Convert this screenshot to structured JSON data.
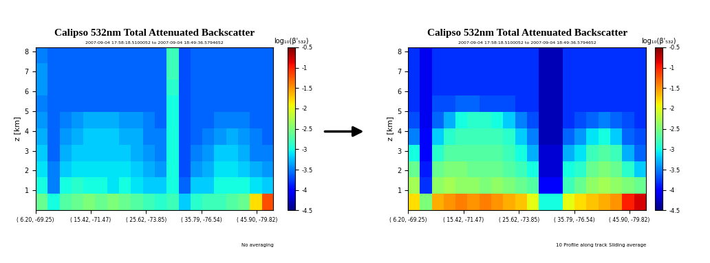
{
  "chart_data": [
    {
      "type": "heatmap",
      "title": "Calipso 532nm Total Attenuated Backscatter",
      "subtitle": "2007-09-04 17:58:18.5100052 to 2007-09-04 18:49:36.5794652",
      "y_label": "z [km]",
      "footer": "No averaging",
      "xlim": [
        0,
        4.3
      ],
      "xticks": [
        {
          "value": 0,
          "label": "( 6.20, -69.25)"
        },
        {
          "value": 1,
          "label": "( 15.42, -71.47)"
        },
        {
          "value": 2,
          "label": "( 25.62, -73.85)"
        },
        {
          "value": 3,
          "label": "( 35.79, -76.54)"
        },
        {
          "value": 4,
          "label": "( 45.90, -79.82)"
        }
      ],
      "ylim": [
        0,
        8.2
      ],
      "yticks": [
        1,
        2,
        3,
        4,
        5,
        6,
        7,
        8
      ],
      "colorbar_label": "log₁₀(β'₅₃₂)",
      "colorbar_range": [
        -4.5,
        -0.5
      ],
      "colorbar_ticks": [
        -0.5,
        -1,
        -1.5,
        -2,
        -2.5,
        -3,
        -3.5,
        -4,
        -4.5
      ],
      "cells": [
        [
          -2.6,
          -3.0,
          -2.7,
          -2.6,
          -2.5,
          -2.6,
          -2.5,
          -2.6,
          -2.7,
          -2.8,
          -2.9,
          -2.8,
          -3.2,
          -2.9,
          -2.8,
          -2.8,
          -2.7,
          -2.6,
          -1.8,
          -1.2
        ],
        [
          -3.0,
          -3.5,
          -3.0,
          -2.9,
          -3.0,
          -3.0,
          -3.1,
          -3.0,
          -3.1,
          -3.2,
          -3.2,
          -3.0,
          -3.6,
          -3.2,
          -3.2,
          -3.0,
          -3.0,
          -3.0,
          -3.1,
          -3.2
        ],
        [
          -3.1,
          -3.5,
          -3.2,
          -3.1,
          -3.1,
          -3.1,
          -3.1,
          -3.1,
          -3.2,
          -3.3,
          -3.4,
          -3.0,
          -3.7,
          -3.4,
          -3.3,
          -3.1,
          -3.1,
          -3.2,
          -3.3,
          -3.4
        ],
        [
          -3.2,
          -3.6,
          -3.3,
          -3.2,
          -3.2,
          -3.2,
          -3.2,
          -3.2,
          -3.3,
          -3.4,
          -3.5,
          -3.0,
          -3.7,
          -3.5,
          -3.4,
          -3.2,
          -3.2,
          -3.3,
          -3.5,
          -3.5
        ],
        [
          -3.3,
          -3.6,
          -3.4,
          -3.3,
          -3.2,
          -3.2,
          -3.2,
          -3.3,
          -3.3,
          -3.5,
          -3.5,
          -3.0,
          -3.7,
          -3.6,
          -3.5,
          -3.4,
          -3.3,
          -3.4,
          -3.5,
          -3.6
        ],
        [
          -3.4,
          -3.6,
          -3.5,
          -3.4,
          -3.3,
          -3.3,
          -3.3,
          -3.4,
          -3.4,
          -3.5,
          -3.6,
          -3.0,
          -3.7,
          -3.6,
          -3.6,
          -3.5,
          -3.5,
          -3.5,
          -3.6,
          -3.6
        ],
        [
          -3.5,
          -3.6,
          -3.6,
          -3.6,
          -3.6,
          -3.6,
          -3.6,
          -3.6,
          -3.6,
          -3.6,
          -3.6,
          -3.0,
          -3.7,
          -3.6,
          -3.6,
          -3.6,
          -3.6,
          -3.6,
          -3.6,
          -3.6
        ],
        [
          -3.4,
          -3.6,
          -3.6,
          -3.6,
          -3.6,
          -3.6,
          -3.6,
          -3.6,
          -3.6,
          -3.6,
          -3.6,
          -2.9,
          -3.7,
          -3.6,
          -3.6,
          -3.6,
          -3.6,
          -3.6,
          -3.6,
          -3.6
        ],
        [
          -3.4,
          -3.6,
          -3.6,
          -3.6,
          -3.6,
          -3.6,
          -3.6,
          -3.6,
          -3.6,
          -3.6,
          -3.6,
          -2.8,
          -3.7,
          -3.6,
          -3.6,
          -3.6,
          -3.6,
          -3.6,
          -3.6,
          -3.6
        ],
        [
          -3.5,
          -3.6,
          -3.6,
          -3.6,
          -3.6,
          -3.6,
          -3.6,
          -3.6,
          -3.6,
          -3.6,
          -3.6,
          -2.8,
          -3.7,
          -3.6,
          -3.6,
          -3.6,
          -3.6,
          -3.6,
          -3.6,
          -3.6
        ]
      ]
    },
    {
      "type": "heatmap",
      "title": "Calipso 532nm Total Attenuated Backscatter",
      "subtitle": "2007-09-04 17:58:18.5100052 to 2007-09-04 18:49:36.5794652",
      "y_label": "z [km]",
      "footer": "10 Profile along track Sliding average",
      "xlim": [
        0,
        4.3
      ],
      "xticks": [
        {
          "value": 0,
          "label": "( 6.20, -69.25)"
        },
        {
          "value": 1,
          "label": "( 15.42, -71.47)"
        },
        {
          "value": 2,
          "label": "( 25.62, -73.85)"
        },
        {
          "value": 3,
          "label": "( 35.79, -76.54)"
        },
        {
          "value": 4,
          "label": "( 45.90, -79.82)"
        }
      ],
      "ylim": [
        0,
        8.2
      ],
      "yticks": [
        1,
        2,
        3,
        4,
        5,
        6,
        7,
        8
      ],
      "colorbar_label": "log₁₀(β'₅₃₂)",
      "colorbar_range": [
        -4.5,
        -0.5
      ],
      "colorbar_ticks": [
        -0.5,
        -1,
        -1.5,
        -2,
        -2.5,
        -3,
        -3.5,
        -4,
        -4.5
      ],
      "cells": [
        [
          -1.8,
          -2.5,
          -1.6,
          -1.5,
          -1.4,
          -1.5,
          -1.4,
          -1.5,
          -1.6,
          -1.7,
          -2.0,
          -3.0,
          -3.0,
          -2.0,
          -1.8,
          -1.7,
          -1.6,
          -1.5,
          -1.0,
          -0.8
        ],
        [
          -2.3,
          -3.8,
          -2.4,
          -2.3,
          -2.4,
          -2.4,
          -2.5,
          -2.4,
          -2.5,
          -2.6,
          -2.7,
          -4.0,
          -4.0,
          -2.8,
          -2.6,
          -2.4,
          -2.3,
          -2.4,
          -2.5,
          -2.6
        ],
        [
          -2.6,
          -3.9,
          -2.6,
          -2.5,
          -2.5,
          -2.6,
          -2.6,
          -2.6,
          -2.7,
          -2.8,
          -3.0,
          -4.2,
          -4.2,
          -3.0,
          -2.9,
          -2.6,
          -2.5,
          -2.6,
          -2.9,
          -3.2
        ],
        [
          -3.0,
          -4.0,
          -2.9,
          -2.7,
          -2.7,
          -2.7,
          -2.7,
          -2.7,
          -2.8,
          -3.0,
          -3.3,
          -4.2,
          -4.2,
          -3.3,
          -3.1,
          -2.8,
          -2.7,
          -2.8,
          -3.3,
          -3.6
        ],
        [
          -3.5,
          -4.0,
          -3.2,
          -2.9,
          -2.8,
          -2.8,
          -2.8,
          -2.8,
          -2.9,
          -3.2,
          -3.5,
          -4.3,
          -4.3,
          -3.6,
          -3.4,
          -3.1,
          -3.0,
          -3.2,
          -3.6,
          -3.7
        ],
        [
          -3.7,
          -4.1,
          -3.6,
          -3.3,
          -3.0,
          -2.9,
          -2.9,
          -3.0,
          -3.2,
          -3.5,
          -3.7,
          -4.3,
          -4.3,
          -3.8,
          -3.7,
          -3.6,
          -3.5,
          -3.6,
          -3.7,
          -3.8
        ],
        [
          -3.8,
          -4.1,
          -3.7,
          -3.7,
          -3.6,
          -3.6,
          -3.7,
          -3.7,
          -3.7,
          -3.8,
          -3.8,
          -4.3,
          -4.3,
          -3.8,
          -3.8,
          -3.8,
          -3.8,
          -3.8,
          -3.8,
          -3.8
        ],
        [
          -3.8,
          -4.1,
          -3.8,
          -3.8,
          -3.8,
          -3.8,
          -3.8,
          -3.8,
          -3.8,
          -3.8,
          -3.8,
          -4.3,
          -4.3,
          -3.8,
          -3.8,
          -3.8,
          -3.8,
          -3.8,
          -3.8,
          -3.8
        ],
        [
          -3.8,
          -4.1,
          -3.8,
          -3.8,
          -3.8,
          -3.8,
          -3.8,
          -3.8,
          -3.8,
          -3.8,
          -3.8,
          -4.3,
          -4.3,
          -3.8,
          -3.8,
          -3.8,
          -3.8,
          -3.8,
          -3.8,
          -3.8
        ],
        [
          -3.8,
          -4.1,
          -3.8,
          -3.8,
          -3.8,
          -3.8,
          -3.8,
          -3.8,
          -3.8,
          -3.8,
          -3.8,
          -4.3,
          -4.3,
          -3.8,
          -3.8,
          -3.8,
          -3.8,
          -3.8,
          -3.8,
          -3.8
        ]
      ]
    }
  ]
}
